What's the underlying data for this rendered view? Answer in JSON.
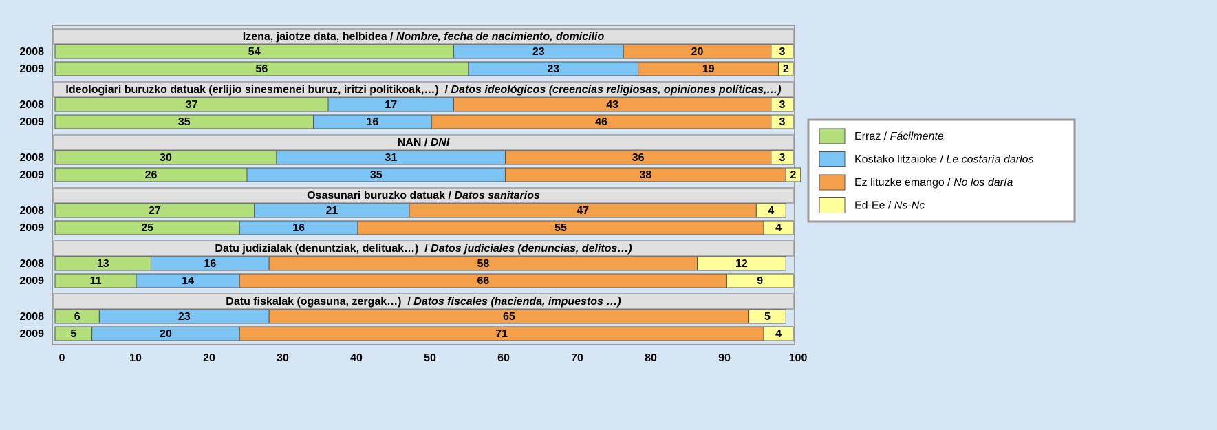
{
  "chart_data": {
    "type": "stacked_barh",
    "groups": [
      "Izena, jaiotze data, helbidea / Nombre, fecha de nacimiento, domicilio",
      "Ideologiari buruzko datuak (erlijio sinesmenei buruz, iritzi politikoak,…)  / Datos ideológicos (creencias religiosas, opiniones políticas,…)",
      "NAN / DNI",
      "Osasunari buruzko datuak / Datos sanitarios",
      "Datu judizialak (denuntziak, delituak…)  / Datos judiciales (denuncias, delitos…)",
      "Datu fiskalak (ogasuna, zergak…)  / Datos fiscales (hacienda, impuestos …)"
    ],
    "categories": [
      "2008",
      "2009",
      "2008",
      "2009",
      "2008",
      "2009",
      "2008",
      "2009",
      "2008",
      "2009",
      "2008",
      "2009"
    ],
    "series": [
      {
        "name": "Erraz / Fácilmente",
        "color": "#b3df7a",
        "values": [
          54,
          56,
          37,
          35,
          30,
          26,
          27,
          25,
          13,
          11,
          6,
          5
        ]
      },
      {
        "name": "Kostako litzaioke / Le costaría darlos",
        "color": "#7cc4f4",
        "values": [
          23,
          23,
          17,
          16,
          31,
          35,
          21,
          16,
          16,
          14,
          23,
          20
        ]
      },
      {
        "name": "Ez lituzke emango / No los daría",
        "color": "#f4a04a",
        "values": [
          20,
          19,
          43,
          46,
          36,
          38,
          47,
          55,
          58,
          66,
          65,
          71
        ]
      },
      {
        "name": "Ed-Ee / Ns-Nc",
        "color": "#ffff99",
        "values": [
          3,
          2,
          3,
          3,
          3,
          2,
          4,
          4,
          12,
          9,
          5,
          4
        ]
      }
    ],
    "xlim": [
      0,
      100
    ],
    "xticks": [
      0,
      10,
      20,
      30,
      40,
      50,
      60,
      70,
      80,
      90,
      100
    ],
    "grid": false,
    "legend": "right"
  }
}
